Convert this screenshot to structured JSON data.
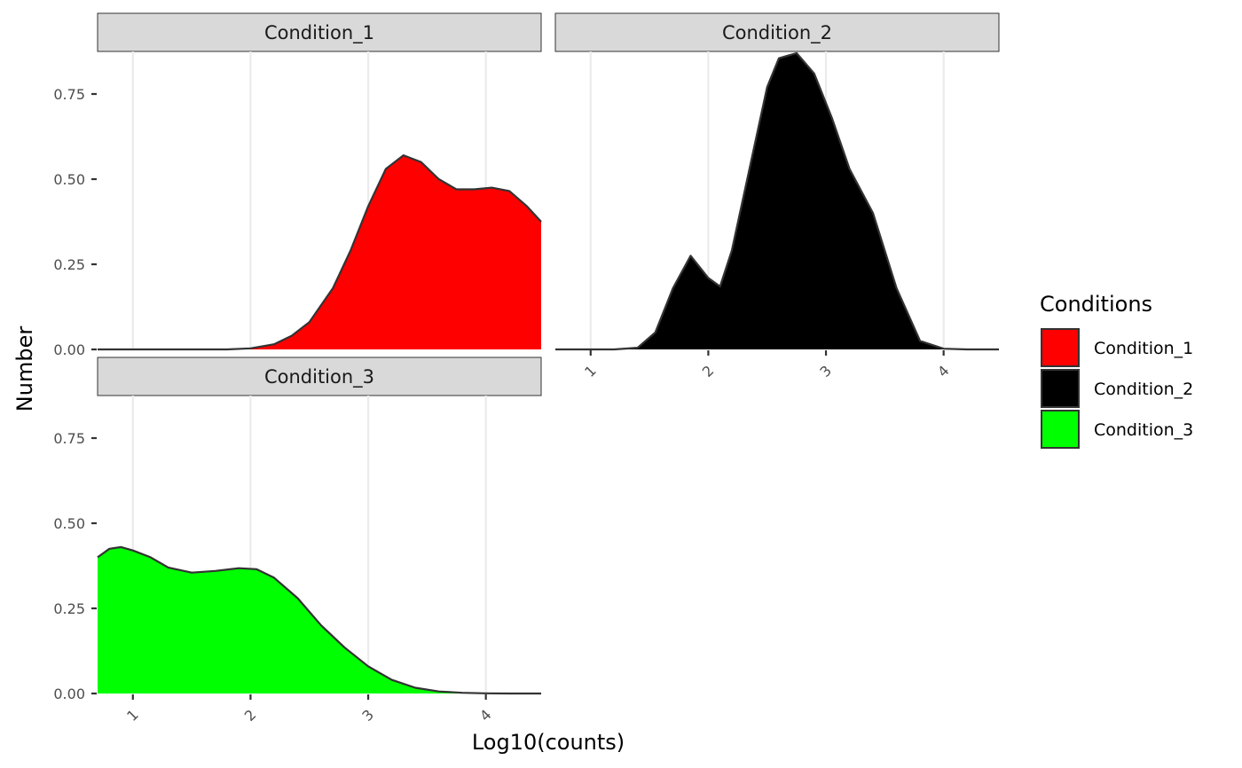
{
  "chart_data": {
    "type": "area",
    "title": "",
    "xlabel": "Log10(counts)",
    "ylabel": "Number",
    "xlim": [
      0.7,
      4.47
    ],
    "ylim": [
      0,
      0.875
    ],
    "x_ticks": [
      1,
      2,
      3,
      4
    ],
    "x_tick_labels": [
      "1",
      "2",
      "3",
      "4"
    ],
    "y_ticks": [
      0,
      0.25,
      0.5,
      0.75
    ],
    "y_tick_labels": [
      "0.00",
      "0.25",
      "0.50",
      "0.75"
    ],
    "grid": true,
    "legend": {
      "title": "Conditions",
      "position": "right",
      "entries": [
        "Condition_1",
        "Condition_2",
        "Condition_3"
      ]
    },
    "series": [
      {
        "name": "Condition_1",
        "color": "#ff0000",
        "x": [
          0.7,
          1.5,
          1.8,
          2.0,
          2.2,
          2.35,
          2.5,
          2.7,
          2.85,
          3.0,
          3.15,
          3.3,
          3.45,
          3.6,
          3.75,
          3.9,
          4.05,
          4.2,
          4.35,
          4.47
        ],
        "y": [
          0.0,
          0.0,
          0.0,
          0.003,
          0.015,
          0.04,
          0.08,
          0.18,
          0.29,
          0.42,
          0.53,
          0.57,
          0.55,
          0.5,
          0.47,
          0.47,
          0.475,
          0.465,
          0.42,
          0.375
        ]
      },
      {
        "name": "Condition_2",
        "color": "#000000",
        "x": [
          0.7,
          1.2,
          1.4,
          1.55,
          1.7,
          1.85,
          2.0,
          2.1,
          2.2,
          2.35,
          2.5,
          2.6,
          2.75,
          2.9,
          3.05,
          3.2,
          3.4,
          3.6,
          3.8,
          4.0,
          4.2,
          4.47
        ],
        "y": [
          0.0,
          0.0,
          0.005,
          0.05,
          0.18,
          0.275,
          0.21,
          0.185,
          0.29,
          0.53,
          0.77,
          0.855,
          0.87,
          0.81,
          0.68,
          0.53,
          0.4,
          0.18,
          0.025,
          0.002,
          0.0,
          0.0
        ]
      },
      {
        "name": "Condition_3",
        "color": "#00ff00",
        "x": [
          0.7,
          0.8,
          0.9,
          1.0,
          1.15,
          1.3,
          1.5,
          1.7,
          1.9,
          2.05,
          2.2,
          2.4,
          2.6,
          2.8,
          3.0,
          3.2,
          3.4,
          3.6,
          3.8,
          4.0,
          4.2,
          4.47
        ],
        "y": [
          0.4,
          0.425,
          0.43,
          0.42,
          0.4,
          0.37,
          0.355,
          0.36,
          0.368,
          0.365,
          0.34,
          0.28,
          0.2,
          0.135,
          0.08,
          0.04,
          0.017,
          0.006,
          0.002,
          0.0005,
          0.0,
          0.0
        ]
      }
    ]
  }
}
